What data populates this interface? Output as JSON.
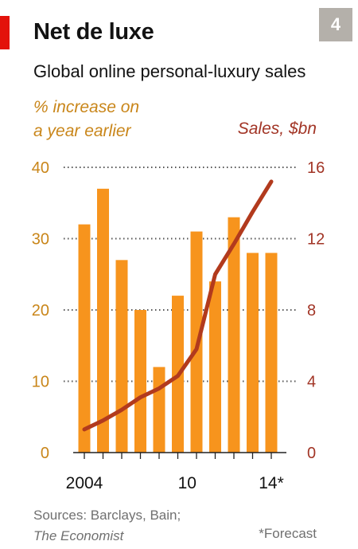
{
  "badge": "4",
  "chart_data": {
    "type": "bar",
    "title": "Net de luxe",
    "subtitle": "Global online personal-luxury sales",
    "left_axis_title_line1": "% increase on",
    "left_axis_title_line2": "a year earlier",
    "right_axis_title": "Sales, $bn",
    "x": [
      2004,
      2005,
      2006,
      2007,
      2008,
      2009,
      2010,
      2011,
      2012,
      2013,
      2014
    ],
    "x_tick_labels": [
      {
        "x": 2004,
        "label": "2004"
      },
      {
        "x": 2009.5,
        "label": "10"
      },
      {
        "x": 2014,
        "label": "14*"
      }
    ],
    "series": [
      {
        "name": "% increase on a year earlier",
        "type": "bar",
        "axis": "left",
        "color": "#f7941d",
        "values": [
          32,
          37,
          27,
          20,
          12,
          22,
          31,
          24,
          33,
          28,
          28
        ]
      },
      {
        "name": "Sales, $bn",
        "type": "line",
        "axis": "right",
        "color": "#b23a1d",
        "x": [
          2004,
          2005,
          2006,
          2007,
          2008,
          2009,
          2010,
          2011,
          2012,
          2013,
          2014
        ],
        "values": [
          1.3,
          1.8,
          2.4,
          3.1,
          3.6,
          4.3,
          5.8,
          10.0,
          11.7,
          13.5,
          15.2
        ]
      }
    ],
    "left_ylim": [
      0,
      40
    ],
    "left_yticks": [
      0,
      10,
      20,
      30,
      40
    ],
    "right_ylim": [
      0,
      16
    ],
    "right_yticks": [
      0,
      4,
      8,
      12,
      16
    ],
    "grid": true,
    "axis_colors": {
      "left": "#c9861a",
      "right": "#a23526"
    }
  },
  "footer": {
    "sources_line": "Sources: Barclays, Bain;",
    "publication": "The Economist",
    "forecast_note": "*Forecast"
  }
}
